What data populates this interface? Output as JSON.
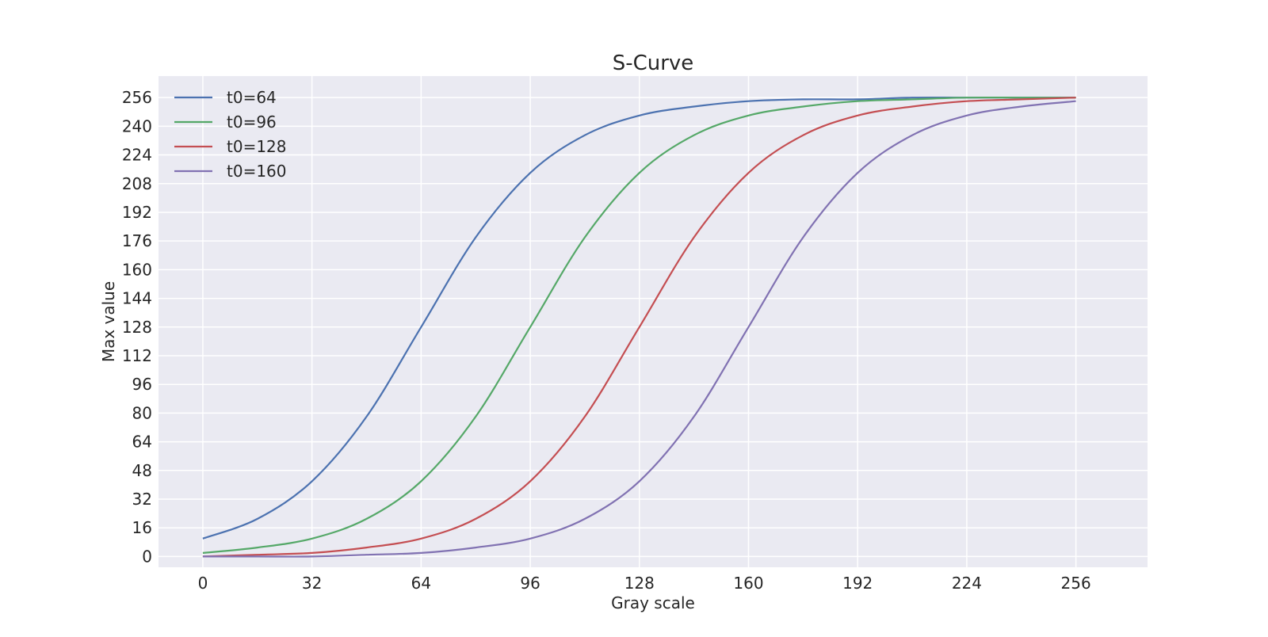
{
  "chart_data": {
    "type": "line",
    "title": "S-Curve",
    "xlabel": "Gray scale",
    "ylabel": "Max value",
    "xlim": [
      -13,
      277
    ],
    "ylim": [
      -6,
      268
    ],
    "xticks": [
      0,
      32,
      64,
      96,
      128,
      160,
      192,
      224,
      256
    ],
    "yticks": [
      0,
      16,
      32,
      48,
      64,
      80,
      96,
      112,
      128,
      144,
      160,
      176,
      192,
      208,
      224,
      240,
      256
    ],
    "grid": true,
    "legend_position": "top-left",
    "x": [
      0,
      16,
      32,
      48,
      64,
      80,
      96,
      112,
      128,
      144,
      160,
      176,
      192,
      208,
      224,
      240,
      256
    ],
    "series": [
      {
        "name": "t0=64",
        "color": "#4c72b0",
        "values": [
          10,
          21,
          42,
          78,
          128,
          178,
          214,
          235,
          246,
          251,
          254,
          255,
          255,
          256,
          256,
          256,
          256
        ]
      },
      {
        "name": "t0=96",
        "color": "#55a868",
        "values": [
          2,
          5,
          10,
          21,
          42,
          78,
          128,
          178,
          214,
          235,
          246,
          251,
          254,
          255,
          256,
          256,
          256
        ]
      },
      {
        "name": "t0=128",
        "color": "#c44e52",
        "values": [
          0,
          1,
          2,
          5,
          10,
          21,
          42,
          78,
          128,
          178,
          214,
          235,
          246,
          251,
          254,
          255,
          256
        ]
      },
      {
        "name": "t0=160",
        "color": "#8172b2",
        "values": [
          0,
          0,
          0,
          1,
          2,
          5,
          10,
          21,
          42,
          78,
          128,
          178,
          214,
          235,
          246,
          251,
          254
        ]
      }
    ]
  }
}
